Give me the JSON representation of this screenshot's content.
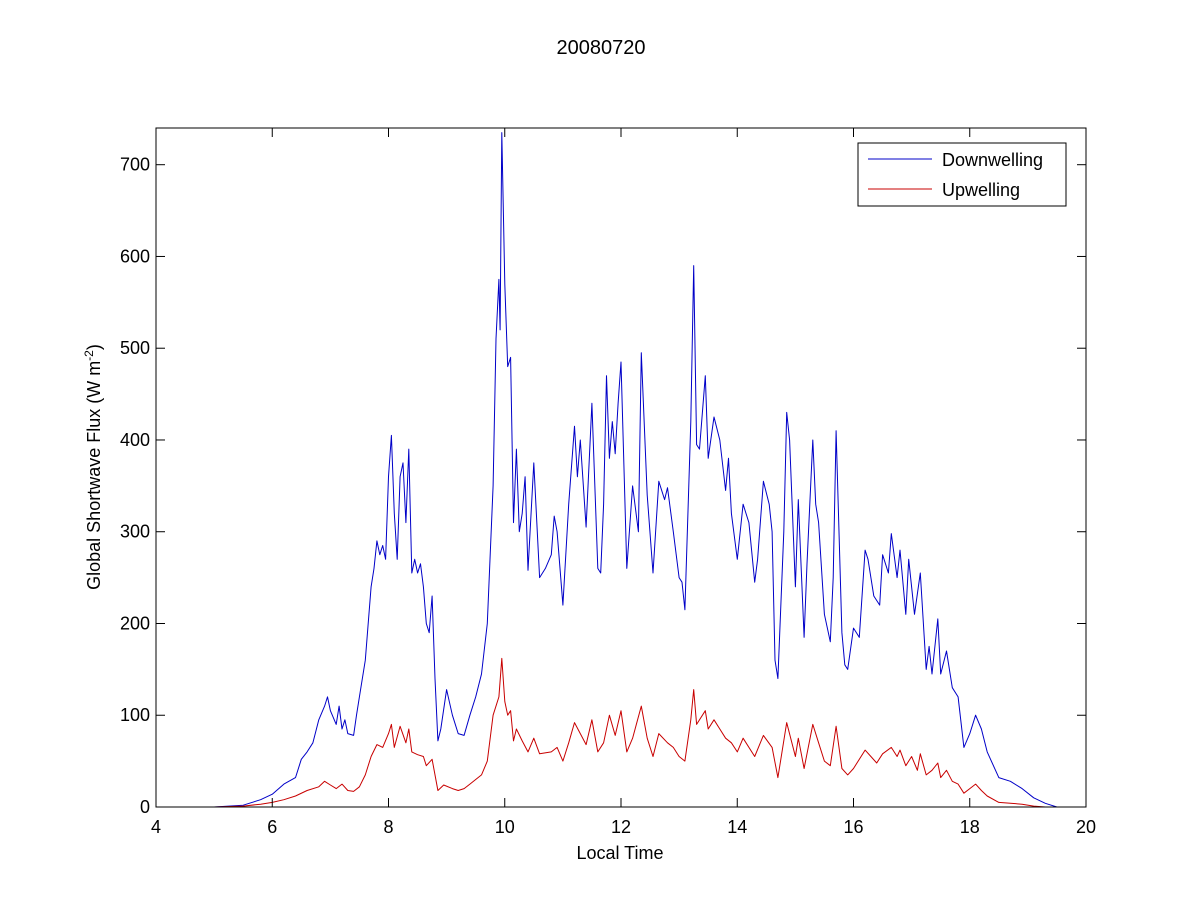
{
  "chart_data": {
    "type": "line",
    "title": "20080720",
    "xlabel": "Local Time",
    "ylabel": "Global Shortwave Flux (W m",
    "ylabel_exponent": "-2",
    "ylabel_suffix": ")",
    "xlim": [
      4,
      20
    ],
    "ylim": [
      0,
      740
    ],
    "xticks": [
      "4",
      "6",
      "8",
      "10",
      "12",
      "14",
      "16",
      "18",
      "20"
    ],
    "yticks": [
      "0",
      "100",
      "200",
      "300",
      "400",
      "500",
      "600",
      "700"
    ],
    "grid": false,
    "legend_position": "top-right",
    "series": [
      {
        "name": "Downwelling",
        "color": "#0000c8",
        "points": [
          [
            4.0,
            0
          ],
          [
            4.3,
            0
          ],
          [
            5.0,
            0
          ],
          [
            5.5,
            2
          ],
          [
            5.8,
            8
          ],
          [
            6.0,
            14
          ],
          [
            6.2,
            25
          ],
          [
            6.4,
            32
          ],
          [
            6.5,
            52
          ],
          [
            6.6,
            60
          ],
          [
            6.7,
            70
          ],
          [
            6.8,
            95
          ],
          [
            6.9,
            110
          ],
          [
            6.95,
            120
          ],
          [
            7.0,
            105
          ],
          [
            7.1,
            90
          ],
          [
            7.15,
            110
          ],
          [
            7.2,
            85
          ],
          [
            7.25,
            95
          ],
          [
            7.3,
            80
          ],
          [
            7.4,
            78
          ],
          [
            7.45,
            100
          ],
          [
            7.5,
            120
          ],
          [
            7.6,
            160
          ],
          [
            7.7,
            240
          ],
          [
            7.75,
            260
          ],
          [
            7.8,
            290
          ],
          [
            7.85,
            275
          ],
          [
            7.9,
            285
          ],
          [
            7.95,
            270
          ],
          [
            8.0,
            360
          ],
          [
            8.05,
            405
          ],
          [
            8.1,
            320
          ],
          [
            8.15,
            270
          ],
          [
            8.2,
            360
          ],
          [
            8.25,
            375
          ],
          [
            8.3,
            310
          ],
          [
            8.35,
            390
          ],
          [
            8.4,
            255
          ],
          [
            8.45,
            270
          ],
          [
            8.5,
            255
          ],
          [
            8.55,
            265
          ],
          [
            8.6,
            240
          ],
          [
            8.65,
            200
          ],
          [
            8.7,
            190
          ],
          [
            8.75,
            230
          ],
          [
            8.8,
            140
          ],
          [
            8.85,
            72
          ],
          [
            8.9,
            85
          ],
          [
            9.0,
            128
          ],
          [
            9.1,
            100
          ],
          [
            9.2,
            80
          ],
          [
            9.3,
            78
          ],
          [
            9.4,
            100
          ],
          [
            9.5,
            120
          ],
          [
            9.6,
            145
          ],
          [
            9.7,
            200
          ],
          [
            9.8,
            350
          ],
          [
            9.85,
            510
          ],
          [
            9.9,
            575
          ],
          [
            9.92,
            520
          ],
          [
            9.95,
            735
          ],
          [
            10.0,
            570
          ],
          [
            10.05,
            480
          ],
          [
            10.1,
            490
          ],
          [
            10.15,
            310
          ],
          [
            10.2,
            390
          ],
          [
            10.25,
            300
          ],
          [
            10.3,
            320
          ],
          [
            10.35,
            360
          ],
          [
            10.4,
            258
          ],
          [
            10.5,
            375
          ],
          [
            10.6,
            250
          ],
          [
            10.7,
            260
          ],
          [
            10.8,
            275
          ],
          [
            10.85,
            317
          ],
          [
            10.9,
            300
          ],
          [
            11.0,
            220
          ],
          [
            11.1,
            330
          ],
          [
            11.2,
            415
          ],
          [
            11.25,
            360
          ],
          [
            11.3,
            400
          ],
          [
            11.4,
            305
          ],
          [
            11.5,
            440
          ],
          [
            11.6,
            260
          ],
          [
            11.65,
            255
          ],
          [
            11.7,
            330
          ],
          [
            11.75,
            470
          ],
          [
            11.8,
            380
          ],
          [
            11.85,
            420
          ],
          [
            11.9,
            385
          ],
          [
            11.95,
            440
          ],
          [
            12.0,
            485
          ],
          [
            12.1,
            260
          ],
          [
            12.2,
            350
          ],
          [
            12.3,
            300
          ],
          [
            12.35,
            495
          ],
          [
            12.45,
            340
          ],
          [
            12.55,
            255
          ],
          [
            12.65,
            355
          ],
          [
            12.75,
            335
          ],
          [
            12.8,
            348
          ],
          [
            12.9,
            300
          ],
          [
            13.0,
            250
          ],
          [
            13.05,
            245
          ],
          [
            13.1,
            215
          ],
          [
            13.2,
            420
          ],
          [
            13.25,
            590
          ],
          [
            13.3,
            395
          ],
          [
            13.35,
            390
          ],
          [
            13.45,
            470
          ],
          [
            13.5,
            380
          ],
          [
            13.6,
            425
          ],
          [
            13.7,
            400
          ],
          [
            13.8,
            345
          ],
          [
            13.85,
            380
          ],
          [
            13.9,
            320
          ],
          [
            14.0,
            270
          ],
          [
            14.1,
            330
          ],
          [
            14.2,
            310
          ],
          [
            14.3,
            245
          ],
          [
            14.35,
            270
          ],
          [
            14.45,
            355
          ],
          [
            14.55,
            330
          ],
          [
            14.6,
            300
          ],
          [
            14.65,
            160
          ],
          [
            14.7,
            140
          ],
          [
            14.8,
            300
          ],
          [
            14.85,
            430
          ],
          [
            14.9,
            400
          ],
          [
            15.0,
            240
          ],
          [
            15.05,
            335
          ],
          [
            15.15,
            185
          ],
          [
            15.2,
            265
          ],
          [
            15.3,
            400
          ],
          [
            15.35,
            330
          ],
          [
            15.4,
            310
          ],
          [
            15.5,
            210
          ],
          [
            15.6,
            180
          ],
          [
            15.65,
            250
          ],
          [
            15.7,
            410
          ],
          [
            15.8,
            190
          ],
          [
            15.85,
            155
          ],
          [
            15.9,
            150
          ],
          [
            16.0,
            195
          ],
          [
            16.1,
            185
          ],
          [
            16.2,
            280
          ],
          [
            16.25,
            270
          ],
          [
            16.35,
            230
          ],
          [
            16.45,
            220
          ],
          [
            16.5,
            275
          ],
          [
            16.6,
            255
          ],
          [
            16.65,
            298
          ],
          [
            16.75,
            250
          ],
          [
            16.8,
            280
          ],
          [
            16.9,
            210
          ],
          [
            16.95,
            270
          ],
          [
            17.05,
            210
          ],
          [
            17.15,
            255
          ],
          [
            17.25,
            150
          ],
          [
            17.3,
            175
          ],
          [
            17.35,
            145
          ],
          [
            17.45,
            205
          ],
          [
            17.5,
            145
          ],
          [
            17.6,
            170
          ],
          [
            17.7,
            130
          ],
          [
            17.8,
            120
          ],
          [
            17.9,
            65
          ],
          [
            18.0,
            80
          ],
          [
            18.1,
            100
          ],
          [
            18.2,
            85
          ],
          [
            18.3,
            60
          ],
          [
            18.5,
            32
          ],
          [
            18.7,
            28
          ],
          [
            18.9,
            20
          ],
          [
            19.1,
            10
          ],
          [
            19.3,
            4
          ],
          [
            19.5,
            0
          ]
        ]
      },
      {
        "name": "Upwelling",
        "color": "#c80000",
        "points": [
          [
            4.0,
            0
          ],
          [
            4.3,
            0
          ],
          [
            5.0,
            0
          ],
          [
            5.5,
            1
          ],
          [
            5.8,
            3
          ],
          [
            6.0,
            5
          ],
          [
            6.2,
            8
          ],
          [
            6.4,
            12
          ],
          [
            6.6,
            18
          ],
          [
            6.8,
            22
          ],
          [
            6.9,
            28
          ],
          [
            7.0,
            24
          ],
          [
            7.1,
            20
          ],
          [
            7.2,
            25
          ],
          [
            7.3,
            18
          ],
          [
            7.4,
            17
          ],
          [
            7.5,
            22
          ],
          [
            7.6,
            35
          ],
          [
            7.7,
            55
          ],
          [
            7.8,
            68
          ],
          [
            7.9,
            65
          ],
          [
            8.0,
            80
          ],
          [
            8.05,
            90
          ],
          [
            8.1,
            65
          ],
          [
            8.2,
            88
          ],
          [
            8.3,
            70
          ],
          [
            8.35,
            85
          ],
          [
            8.4,
            60
          ],
          [
            8.5,
            57
          ],
          [
            8.6,
            55
          ],
          [
            8.65,
            45
          ],
          [
            8.75,
            52
          ],
          [
            8.85,
            18
          ],
          [
            8.95,
            24
          ],
          [
            9.1,
            20
          ],
          [
            9.2,
            18
          ],
          [
            9.3,
            20
          ],
          [
            9.4,
            25
          ],
          [
            9.5,
            30
          ],
          [
            9.6,
            35
          ],
          [
            9.7,
            50
          ],
          [
            9.8,
            100
          ],
          [
            9.9,
            120
          ],
          [
            9.95,
            162
          ],
          [
            10.0,
            115
          ],
          [
            10.05,
            100
          ],
          [
            10.1,
            105
          ],
          [
            10.15,
            72
          ],
          [
            10.2,
            85
          ],
          [
            10.3,
            72
          ],
          [
            10.4,
            60
          ],
          [
            10.5,
            75
          ],
          [
            10.6,
            58
          ],
          [
            10.8,
            60
          ],
          [
            10.9,
            65
          ],
          [
            11.0,
            50
          ],
          [
            11.1,
            70
          ],
          [
            11.2,
            92
          ],
          [
            11.3,
            80
          ],
          [
            11.4,
            68
          ],
          [
            11.5,
            95
          ],
          [
            11.6,
            60
          ],
          [
            11.7,
            70
          ],
          [
            11.8,
            100
          ],
          [
            11.9,
            78
          ],
          [
            12.0,
            105
          ],
          [
            12.1,
            60
          ],
          [
            12.2,
            75
          ],
          [
            12.35,
            110
          ],
          [
            12.45,
            75
          ],
          [
            12.55,
            55
          ],
          [
            12.65,
            80
          ],
          [
            12.8,
            70
          ],
          [
            12.9,
            65
          ],
          [
            13.0,
            55
          ],
          [
            13.1,
            50
          ],
          [
            13.2,
            95
          ],
          [
            13.25,
            128
          ],
          [
            13.3,
            90
          ],
          [
            13.45,
            105
          ],
          [
            13.5,
            85
          ],
          [
            13.6,
            95
          ],
          [
            13.7,
            85
          ],
          [
            13.8,
            75
          ],
          [
            13.9,
            70
          ],
          [
            14.0,
            60
          ],
          [
            14.1,
            75
          ],
          [
            14.3,
            55
          ],
          [
            14.45,
            78
          ],
          [
            14.6,
            65
          ],
          [
            14.7,
            32
          ],
          [
            14.85,
            92
          ],
          [
            15.0,
            55
          ],
          [
            15.05,
            75
          ],
          [
            15.15,
            42
          ],
          [
            15.3,
            90
          ],
          [
            15.4,
            70
          ],
          [
            15.5,
            50
          ],
          [
            15.6,
            45
          ],
          [
            15.7,
            88
          ],
          [
            15.8,
            42
          ],
          [
            15.9,
            35
          ],
          [
            16.0,
            42
          ],
          [
            16.2,
            62
          ],
          [
            16.3,
            55
          ],
          [
            16.4,
            48
          ],
          [
            16.5,
            58
          ],
          [
            16.65,
            65
          ],
          [
            16.75,
            55
          ],
          [
            16.8,
            62
          ],
          [
            16.9,
            45
          ],
          [
            17.0,
            55
          ],
          [
            17.1,
            40
          ],
          [
            17.15,
            58
          ],
          [
            17.25,
            35
          ],
          [
            17.35,
            40
          ],
          [
            17.45,
            48
          ],
          [
            17.5,
            32
          ],
          [
            17.6,
            40
          ],
          [
            17.7,
            28
          ],
          [
            17.8,
            25
          ],
          [
            17.9,
            15
          ],
          [
            18.0,
            20
          ],
          [
            18.1,
            25
          ],
          [
            18.2,
            18
          ],
          [
            18.3,
            12
          ],
          [
            18.5,
            5
          ],
          [
            18.7,
            4
          ],
          [
            18.9,
            3
          ],
          [
            19.1,
            1
          ],
          [
            19.3,
            0
          ],
          [
            19.5,
            0
          ]
        ]
      }
    ]
  }
}
